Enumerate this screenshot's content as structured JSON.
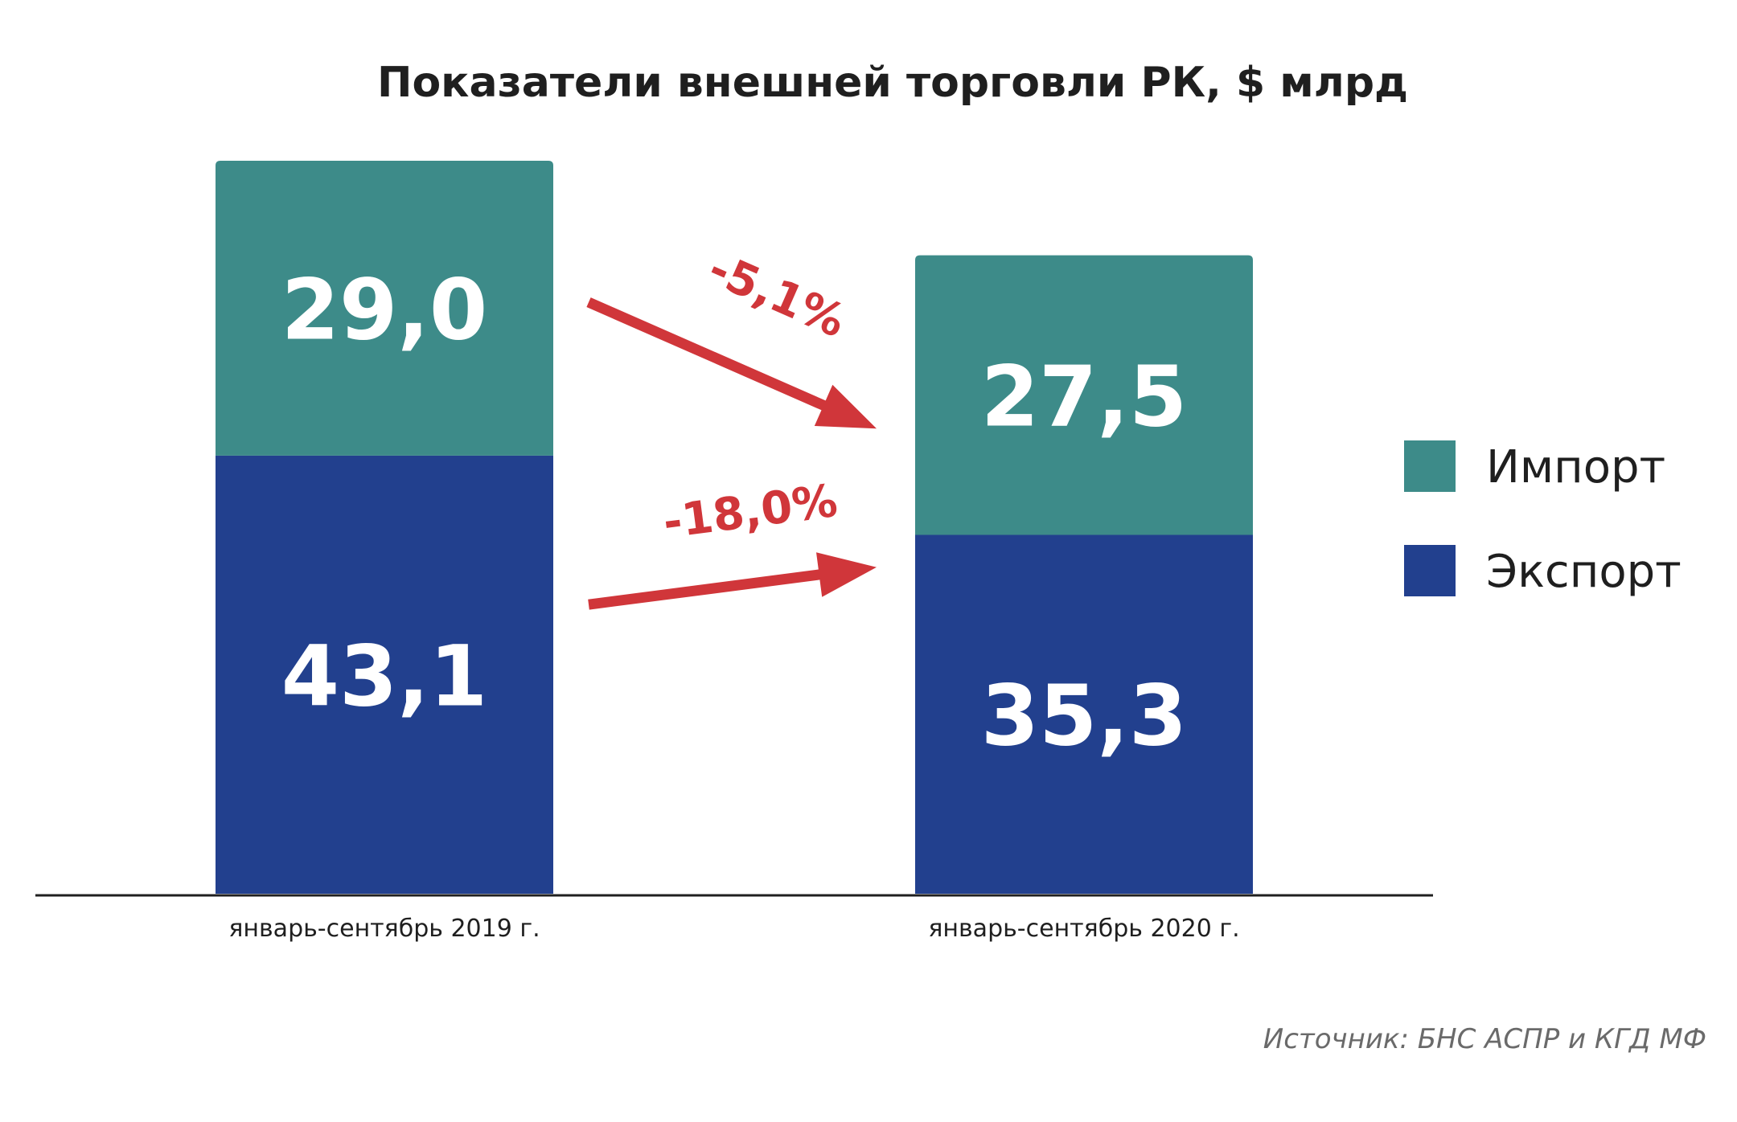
{
  "chart_data": {
    "type": "bar",
    "stacked": true,
    "title": "Показатели внешней торговли РК, $ млрд",
    "categories": [
      "январь-сентябрь 2019 г.",
      "январь-сентябрь 2020 г."
    ],
    "series": [
      {
        "name": "Экспорт",
        "color": "#22408e",
        "values": [
          43.1,
          35.3
        ],
        "labels": [
          "43,1",
          "35,3"
        ]
      },
      {
        "name": "Импорт",
        "color": "#3d8b89",
        "values": [
          29.0,
          27.5
        ],
        "labels": [
          "29,0",
          "27,5"
        ]
      }
    ],
    "changes": [
      {
        "series": "Импорт",
        "label": "-5,1%"
      },
      {
        "series": "Экспорт",
        "label": "-18,0%"
      }
    ],
    "legend": {
      "position": "right",
      "items": [
        {
          "name": "Импорт",
          "color": "#3d8b89"
        },
        {
          "name": "Экспорт",
          "color": "#22408e"
        }
      ]
    },
    "ylim": [
      0,
      72.1
    ],
    "grid": false,
    "source": "Источник: БНС АСПР и КГД МФ"
  }
}
